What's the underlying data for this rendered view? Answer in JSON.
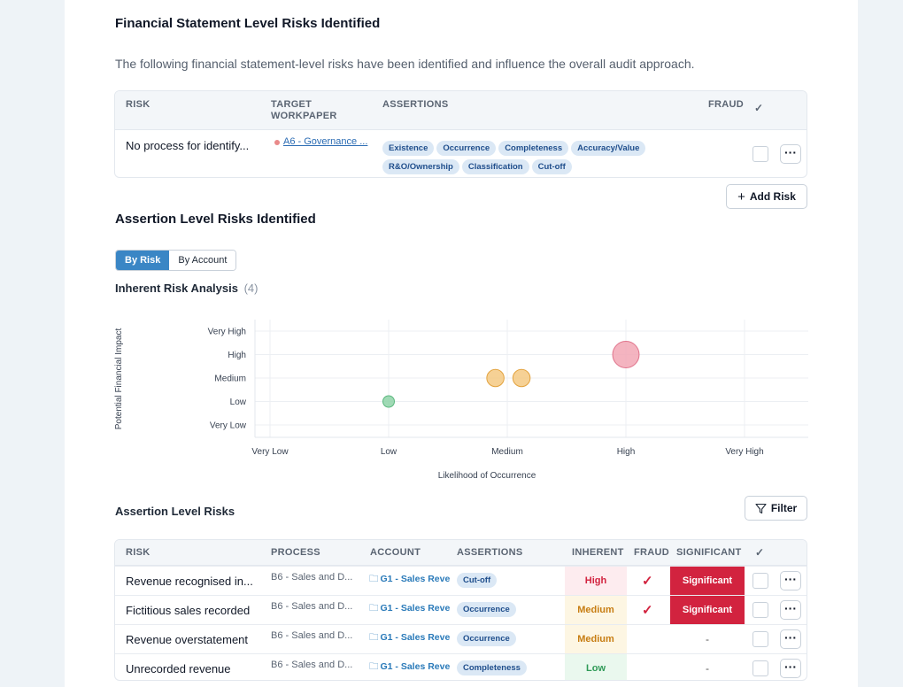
{
  "fs_section": {
    "title": "Financial Statement Level Risks Identified",
    "description": "The following financial statement-level risks have been identified and influence the overall audit approach.",
    "headers": {
      "risk": "RISK",
      "target_line1": "TARGET",
      "target_line2": "WORKPAPER",
      "assertions": "ASSERTIONS",
      "fraud": "FRAUD",
      "check": "✓"
    },
    "row": {
      "risk": "No process for identify...",
      "workpaper": "A6 - Governance ...",
      "assertions": [
        "Existence",
        "Occurrence",
        "Completeness",
        "Accuracy/Value",
        "R&O/Ownership",
        "Classification",
        "Cut-off"
      ]
    },
    "add_risk": "Add Risk"
  },
  "assertion_section": {
    "title": "Assertion Level Risks Identified",
    "toggle": {
      "by_risk": "By Risk",
      "by_account": "By Account"
    },
    "analysis_title": "Inherent Risk Analysis",
    "analysis_count": "(4)"
  },
  "chart_data": {
    "type": "scatter",
    "title": "",
    "xlabel": "Likelihood of Occurrence",
    "ylabel": "Potential Financial Impact",
    "x_categories": [
      "Very Low",
      "Low",
      "Medium",
      "High",
      "Very High"
    ],
    "y_categories": [
      "Very Low",
      "Low",
      "Medium",
      "High",
      "Very High"
    ],
    "points": [
      {
        "x": 2,
        "y": 2,
        "size": 1,
        "level": "Low",
        "color": "#8fd3a8"
      },
      {
        "x": 2.9,
        "y": 3,
        "size": 1.5,
        "level": "Medium",
        "color": "#f5c982"
      },
      {
        "x": 3.12,
        "y": 3,
        "size": 1.5,
        "level": "Medium",
        "color": "#f5c982"
      },
      {
        "x": 4,
        "y": 4,
        "size": 2.3,
        "level": "High",
        "color": "#f2a7b5"
      }
    ],
    "grid": true
  },
  "risks_table": {
    "title": "Assertion Level Risks",
    "filter": "Filter",
    "headers": {
      "risk": "RISK",
      "process": "PROCESS",
      "account": "ACCOUNT",
      "assertions": "ASSERTIONS",
      "inherent": "INHERENT",
      "fraud": "FRAUD",
      "significant": "SIGNIFICANT",
      "check": "✓"
    },
    "rows": [
      {
        "risk": "Revenue recognised in...",
        "process": "B6 - Sales and D...",
        "account": "G1 - Sales Reve",
        "assertion": "Cut-off",
        "inherent": "High",
        "fraud": "✓",
        "significant": "Significant"
      },
      {
        "risk": "Fictitious sales recorded",
        "process": "B6 - Sales and D...",
        "account": "G1 - Sales Reve",
        "assertion": "Occurrence",
        "inherent": "Medium",
        "fraud": "✓",
        "significant": "Significant"
      },
      {
        "risk": "Revenue overstatement",
        "process": "B6 - Sales and D...",
        "account": "G1 - Sales Reve",
        "assertion": "Occurrence",
        "inherent": "Medium",
        "fraud": "",
        "significant": "-"
      },
      {
        "risk": "Unrecorded revenue",
        "process": "B6 - Sales and D...",
        "account": "G1 - Sales Reve",
        "assertion": "Completeness",
        "inherent": "Low",
        "fraud": "",
        "significant": "-"
      }
    ]
  },
  "colors": {
    "accent": "#3a86c5",
    "significant": "#d2233f",
    "high_bg": "#fdecef",
    "medium_bg": "#fdf6e3",
    "low_bg": "#eaf8ee"
  }
}
